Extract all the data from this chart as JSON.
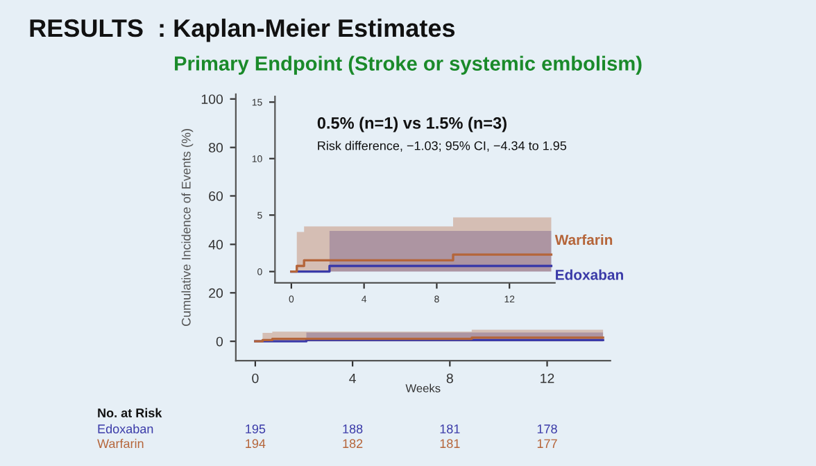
{
  "chart_data": [
    {
      "type": "step",
      "title": "RESULTS  : Kaplan-Meier Estimates",
      "subtitle": "Primary Endpoint (Stroke or systemic embolism)",
      "xlabel": "Weeks",
      "ylabel": "Cumulative Incidence of Events (%)",
      "xlim": [
        -0.8,
        14.6
      ],
      "ylim": [
        -8,
        102
      ],
      "xticks": [
        0,
        4,
        8,
        12
      ],
      "yticks": [
        0,
        20,
        40,
        60,
        80,
        100
      ],
      "grid": false,
      "legend": false,
      "series": [
        {
          "color": "#3a3aa8",
          "x": [
            0,
            2.1,
            14.3
          ],
          "values": [
            0,
            0.5,
            0.5
          ],
          "lower": [
            0,
            0,
            0
          ],
          "upper": [
            0,
            3.6,
            3.6
          ]
        },
        {
          "color": "#b5653a",
          "x": [
            0,
            0.3,
            0.7,
            8.9,
            14.3
          ],
          "values": [
            0,
            0.5,
            1.0,
            1.5,
            1.5
          ],
          "lower": [
            0,
            0,
            0,
            0,
            0
          ],
          "upper": [
            0,
            3.5,
            4.0,
            4.8,
            4.8
          ]
        }
      ],
      "annotations": [
        "No. at Risk",
        "Edoxaban",
        "195",
        "188",
        "181",
        "178",
        "Warfarin",
        "194",
        "182",
        "181",
        "177"
      ]
    },
    {
      "type": "step",
      "xlim": [
        -0.9,
        14.5
      ],
      "ylim": [
        -1,
        15.5
      ],
      "xticks": [
        0,
        4,
        8,
        12
      ],
      "yticks": [
        0,
        5,
        10,
        15
      ],
      "grid": false,
      "legend": false,
      "series": [
        {
          "name": "Edoxaban",
          "color": "#3a3aa8",
          "x": [
            0,
            2.1,
            14.3
          ],
          "values": [
            0,
            0.5,
            0.5
          ],
          "lower": [
            0,
            0,
            0
          ],
          "upper": [
            0,
            3.6,
            3.6
          ]
        },
        {
          "name": "Warfarin",
          "color": "#b5653a",
          "x": [
            0,
            0.3,
            0.7,
            8.9,
            14.3
          ],
          "values": [
            0,
            0.5,
            1.0,
            1.5,
            1.5
          ],
          "lower": [
            0,
            0,
            0,
            0,
            0
          ],
          "upper": [
            0,
            3.5,
            4.0,
            4.8,
            4.8
          ]
        }
      ],
      "annotations": [
        "0.5% (n=1) vs 1.5% (n=3)",
        "Risk difference, −1.03; 95% CI, −4.34 to 1.95"
      ]
    }
  ]
}
